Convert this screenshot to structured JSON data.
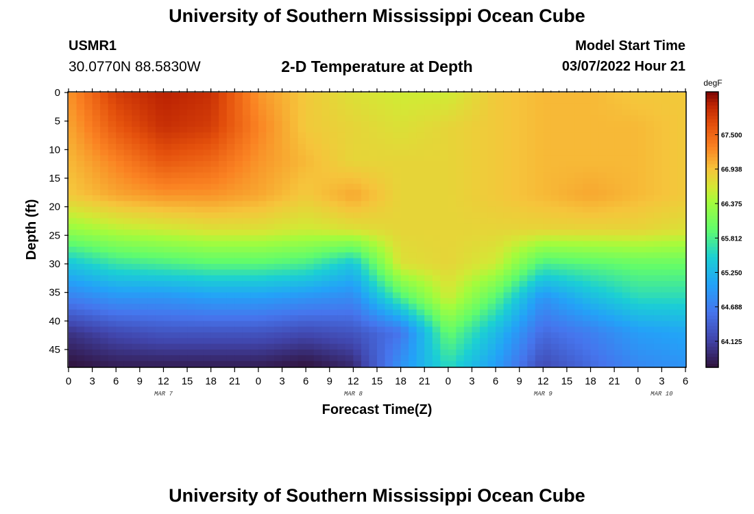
{
  "header": {
    "title": "University of Southern Mississippi Ocean Cube",
    "station": "USMR1",
    "coordinates": "30.0770N  88.5830W",
    "subtitle": "2-D Temperature at Depth",
    "model_start_label": "Model Start Time",
    "model_start_value": "03/07/2022 Hour 21"
  },
  "footer": {
    "title": "University of Southern Mississippi Ocean Cube"
  },
  "chart_data": {
    "type": "heatmap",
    "title": "2-D Temperature at Depth",
    "xlabel": "Forecast Time(Z)",
    "ylabel": "Depth (ft)",
    "x_range_hours": [
      0,
      78
    ],
    "y_range_ft": [
      0,
      48
    ],
    "x_tick_hours": [
      0,
      3,
      6,
      9,
      12,
      15,
      18,
      21,
      24,
      27,
      30,
      33,
      36,
      39,
      42,
      45,
      48,
      51,
      54,
      57,
      60,
      63,
      66,
      69,
      72,
      75,
      78
    ],
    "x_tick_labels": [
      "0",
      "3",
      "6",
      "9",
      "12",
      "15",
      "18",
      "21",
      "0",
      "3",
      "6",
      "9",
      "12",
      "15",
      "18",
      "21",
      "0",
      "3",
      "6",
      "9",
      "12",
      "15",
      "18",
      "21",
      "0",
      "3",
      "6"
    ],
    "date_labels": [
      {
        "hour": 12,
        "label": "MAR 7"
      },
      {
        "hour": 36,
        "label": "MAR 8"
      },
      {
        "hour": 60,
        "label": "MAR 9"
      },
      {
        "hour": 75,
        "label": "MAR 10"
      }
    ],
    "y_ticks": [
      0,
      5,
      10,
      15,
      20,
      25,
      30,
      35,
      40,
      45
    ],
    "y_tick_labels": [
      "0",
      "5",
      "10",
      "15",
      "20",
      "25",
      "30",
      "35",
      "40",
      "45"
    ],
    "colorbar": {
      "unit": "degF",
      "vmin": 63.7,
      "vmax": 68.2,
      "ticks": [
        67.5,
        66.938,
        66.375,
        65.812,
        65.25,
        64.688,
        64.125
      ],
      "tick_labels": [
        "67.500",
        "66.938",
        "66.375",
        "65.812",
        "65.250",
        "64.688",
        "64.125"
      ]
    },
    "grid_hours": [
      0,
      6,
      12,
      18,
      24,
      30,
      36,
      42,
      48,
      54,
      60,
      66,
      72,
      78
    ],
    "grid_depths": [
      0,
      6,
      12,
      18,
      24,
      30,
      36,
      42,
      48
    ],
    "values": [
      [
        67.2,
        67.8,
        68.0,
        67.9,
        67.2,
        66.9,
        66.7,
        66.6,
        66.6,
        66.9,
        67.0,
        67.0,
        66.9,
        66.9
      ],
      [
        67.1,
        67.6,
        67.9,
        67.8,
        67.3,
        66.9,
        66.8,
        66.7,
        66.8,
        66.9,
        67.0,
        67.0,
        67.0,
        66.9
      ],
      [
        67.0,
        67.3,
        67.6,
        67.5,
        67.2,
        67.0,
        66.8,
        66.8,
        66.8,
        66.9,
        67.0,
        67.0,
        67.0,
        66.9
      ],
      [
        66.9,
        67.1,
        67.2,
        67.2,
        67.1,
        66.9,
        67.1,
        66.8,
        66.8,
        66.9,
        67.0,
        67.1,
        67.0,
        66.9
      ],
      [
        66.3,
        66.5,
        66.6,
        66.7,
        66.7,
        66.6,
        66.7,
        66.8,
        66.8,
        66.8,
        66.8,
        66.8,
        66.8,
        66.7
      ],
      [
        65.4,
        65.7,
        65.8,
        65.9,
        65.9,
        65.8,
        65.4,
        66.7,
        66.8,
        66.6,
        65.8,
        65.9,
        66.0,
        66.0
      ],
      [
        64.7,
        64.9,
        64.9,
        65.0,
        65.0,
        64.9,
        64.8,
        65.8,
        66.6,
        65.9,
        64.9,
        65.3,
        65.6,
        65.6
      ],
      [
        64.0,
        64.2,
        64.3,
        64.3,
        64.3,
        64.2,
        64.3,
        64.6,
        66.0,
        65.3,
        64.5,
        64.7,
        65.0,
        65.1
      ],
      [
        63.7,
        63.8,
        63.8,
        63.8,
        63.8,
        63.7,
        63.9,
        64.9,
        65.6,
        65.0,
        64.2,
        64.5,
        64.8,
        64.9
      ]
    ]
  }
}
